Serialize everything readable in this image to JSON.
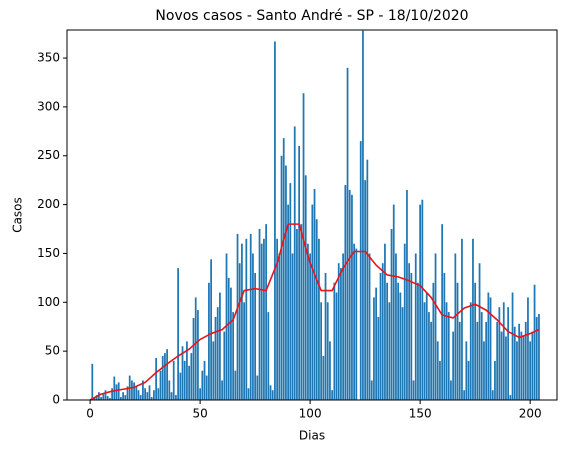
{
  "chart_data": {
    "type": "bar",
    "title": "Novos casos - Santo André - SP - 18/10/2020",
    "xlabel": "Dias",
    "ylabel": "Casos",
    "xlim": [
      -10.5,
      212.2
    ],
    "ylim": [
      0,
      378.7
    ],
    "xticks": [
      0,
      50,
      100,
      150,
      200
    ],
    "yticks": [
      0,
      50,
      100,
      150,
      200,
      250,
      300,
      350
    ],
    "series": [
      {
        "type": "bar",
        "color": "#1f77b4",
        "x": [
          0,
          1,
          2,
          3,
          4,
          5,
          6,
          7,
          8,
          9,
          10,
          11,
          12,
          13,
          14,
          15,
          16,
          17,
          18,
          19,
          20,
          21,
          22,
          23,
          24,
          25,
          26,
          27,
          28,
          29,
          30,
          31,
          32,
          33,
          34,
          35,
          36,
          37,
          38,
          39,
          40,
          41,
          42,
          43,
          44,
          45,
          46,
          47,
          48,
          49,
          50,
          51,
          52,
          53,
          54,
          55,
          56,
          57,
          58,
          59,
          60,
          61,
          62,
          63,
          64,
          65,
          66,
          67,
          68,
          69,
          70,
          71,
          72,
          73,
          74,
          75,
          76,
          77,
          78,
          79,
          80,
          81,
          82,
          83,
          84,
          85,
          86,
          87,
          88,
          89,
          90,
          91,
          92,
          93,
          94,
          95,
          96,
          97,
          98,
          99,
          100,
          101,
          102,
          103,
          104,
          105,
          106,
          107,
          108,
          109,
          110,
          111,
          112,
          113,
          114,
          115,
          116,
          117,
          118,
          119,
          120,
          121,
          122,
          123,
          124,
          125,
          126,
          127,
          128,
          129,
          130,
          131,
          132,
          133,
          134,
          135,
          136,
          137,
          138,
          139,
          140,
          141,
          142,
          143,
          144,
          145,
          146,
          147,
          148,
          149,
          150,
          151,
          152,
          153,
          154,
          155,
          156,
          157,
          158,
          159,
          160,
          161,
          162,
          163,
          164,
          165,
          166,
          167,
          168,
          169,
          170,
          171,
          172,
          173,
          174,
          175,
          176,
          177,
          178,
          179,
          180,
          181,
          182,
          183,
          184,
          185,
          186,
          187,
          188,
          189,
          190,
          191,
          192,
          193,
          194,
          195,
          196,
          197,
          198,
          199,
          200,
          201,
          202,
          203,
          204
        ],
        "values": [
          0,
          37,
          2,
          5,
          8,
          3,
          6,
          10,
          4,
          2,
          12,
          24,
          16,
          18,
          3,
          8,
          5,
          14,
          25,
          20,
          18,
          14,
          10,
          5,
          20,
          12,
          8,
          15,
          3,
          10,
          43,
          12,
          30,
          45,
          48,
          52,
          20,
          8,
          40,
          5,
          135,
          28,
          55,
          40,
          60,
          35,
          48,
          84,
          105,
          92,
          12,
          30,
          40,
          25,
          120,
          144,
          60,
          85,
          95,
          110,
          20,
          70,
          150,
          125,
          115,
          90,
          30,
          170,
          140,
          160,
          100,
          165,
          12,
          170,
          150,
          130,
          25,
          175,
          160,
          165,
          180,
          90,
          15,
          10,
          367,
          165,
          150,
          250,
          268,
          240,
          200,
          222,
          150,
          280,
          175,
          260,
          180,
          314,
          230,
          160,
          150,
          200,
          216,
          185,
          165,
          100,
          45,
          130,
          100,
          60,
          10,
          120,
          110,
          140,
          135,
          150,
          220,
          340,
          215,
          210,
          160,
          155,
          0,
          265,
          378,
          225,
          246,
          150,
          20,
          105,
          115,
          85,
          130,
          140,
          160,
          120,
          100,
          175,
          200,
          150,
          120,
          110,
          95,
          160,
          215,
          140,
          130,
          20,
          150,
          120,
          200,
          205,
          100,
          110,
          90,
          80,
          120,
          150,
          60,
          40,
          180,
          130,
          100,
          90,
          20,
          70,
          150,
          120,
          80,
          165,
          10,
          60,
          40,
          100,
          165,
          120,
          80,
          140,
          90,
          60,
          80,
          110,
          105,
          10,
          40,
          80,
          95,
          70,
          100,
          65,
          95,
          5,
          110,
          75,
          60,
          78,
          70,
          65,
          80,
          105,
          60,
          70,
          118,
          85,
          88
        ]
      },
      {
        "type": "line",
        "color": "#e8141c",
        "x": [
          0,
          5,
          10,
          15,
          20,
          25,
          30,
          35,
          40,
          45,
          50,
          55,
          60,
          65,
          70,
          75,
          80,
          85,
          90,
          95,
          100,
          105,
          110,
          115,
          120,
          125,
          130,
          135,
          140,
          145,
          150,
          155,
          160,
          165,
          170,
          175,
          180,
          185,
          190,
          195,
          200,
          204
        ],
        "values": [
          0,
          6,
          9,
          11,
          13,
          18,
          28,
          37,
          45,
          52,
          62,
          68,
          72,
          82,
          112,
          114,
          112,
          140,
          180,
          180,
          140,
          112,
          112,
          135,
          152,
          152,
          138,
          128,
          126,
          122,
          117,
          105,
          87,
          84,
          94,
          98,
          92,
          82,
          70,
          64,
          68,
          72
        ]
      }
    ]
  }
}
